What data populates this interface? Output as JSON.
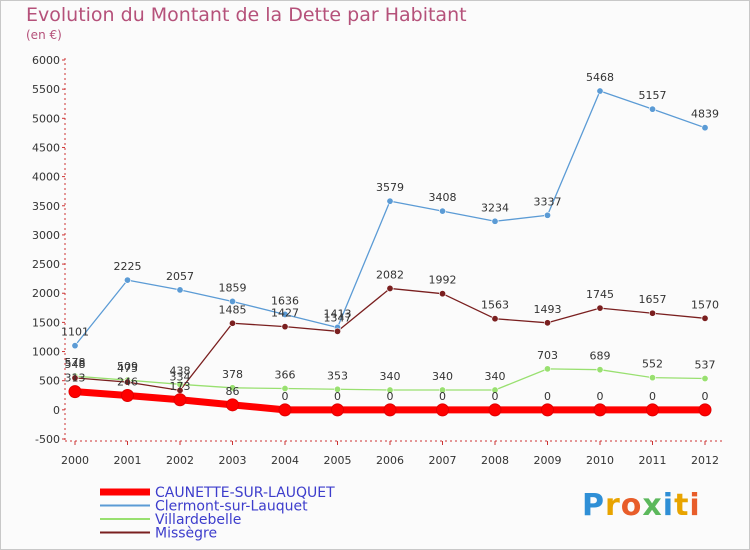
{
  "chart_data": {
    "type": "line",
    "title": "Evolution du Montant de la Dette par Habitant",
    "subtitle": "(en €)",
    "x": [
      "2000",
      "2001",
      "2002",
      "2003",
      "2004",
      "2005",
      "2006",
      "2007",
      "2008",
      "2009",
      "2010",
      "2011",
      "2012"
    ],
    "ylim": [
      -500,
      6000
    ],
    "yticks": [
      -500,
      0,
      500,
      1000,
      1500,
      2000,
      2500,
      3000,
      3500,
      4000,
      4500,
      5000,
      5500,
      6000
    ],
    "grid": false,
    "legend_position": "bottom-left",
    "series": [
      {
        "name": "CAUNETTE-SUR-LAUQUET",
        "color": "#ff0000",
        "values": [
          313,
          246,
          173,
          86,
          0,
          0,
          0,
          0,
          0,
          0,
          0,
          0,
          0
        ],
        "labels": [
          "313",
          "246",
          "173",
          "86",
          "0",
          "0",
          "0",
          "0",
          "0",
          "0",
          "0",
          "0",
          "0"
        ]
      },
      {
        "name": "Clermont-sur-Lauquet",
        "color": "#5b9bd5",
        "values": [
          1101,
          2225,
          2057,
          1859,
          1636,
          1413,
          3579,
          3408,
          3234,
          3337,
          5468,
          5157,
          4839
        ],
        "labels": [
          "1101",
          "2225",
          "2057",
          "1859",
          "1636",
          "1413",
          "3579",
          "3408",
          "3234",
          "3337",
          "5468",
          "5157",
          "4839"
        ]
      },
      {
        "name": "Villardebelle",
        "color": "#99e070",
        "values": [
          578,
          509,
          438,
          378,
          366,
          353,
          340,
          340,
          340,
          703,
          689,
          552,
          537
        ],
        "labels": [
          "578",
          "509",
          "438",
          "378",
          "366",
          "353",
          "340",
          "340",
          "340",
          "703",
          "689",
          "552",
          "537"
        ]
      },
      {
        "name": "Missègre",
        "color": "#7a1f1f",
        "values": [
          548,
          475,
          334,
          1485,
          1427,
          1347,
          2082,
          1992,
          1563,
          1493,
          1745,
          1657,
          1570
        ],
        "labels": [
          "548",
          "475",
          "334",
          "1485",
          "1427",
          "1347",
          "2082",
          "1992",
          "1563",
          "1493",
          "1745",
          "1657",
          "1570"
        ]
      }
    ]
  },
  "logo": {
    "text": "Proxiti",
    "colors": [
      "#2f8fd6",
      "#e8a400",
      "#e85d2a",
      "#5cb85c",
      "#2f8fd6",
      "#e8a400",
      "#e85d2a"
    ]
  }
}
